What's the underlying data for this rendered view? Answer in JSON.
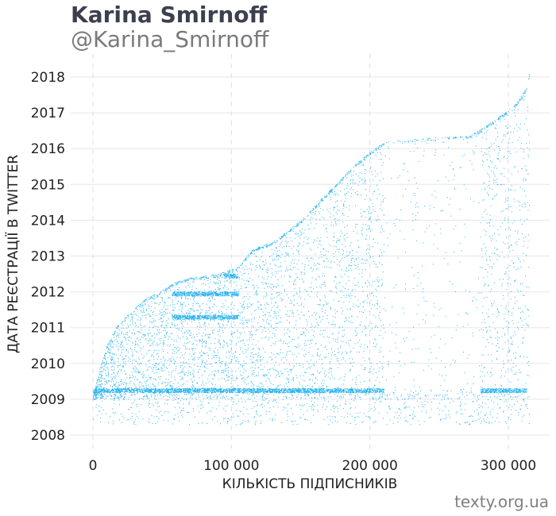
{
  "header": {
    "title": "Karina Smirnoff",
    "subtitle": "@Karina_Smirnoff"
  },
  "source": "texty.org.ua",
  "chart_data": {
    "type": "scatter",
    "xlabel": "КІЛЬКІСТЬ ПІДПИСНИКІВ",
    "ylabel": "ДАТА РЕЄСТРАЦІЇ В TWITTER",
    "xlim": [
      -10000,
      330000
    ],
    "ylim": [
      2007.6,
      2018.2
    ],
    "x_ticks": [
      {
        "value": 0,
        "label": "0"
      },
      {
        "value": 100000,
        "label": "100 000"
      },
      {
        "value": 200000,
        "label": "200 000"
      },
      {
        "value": 300000,
        "label": "300 000"
      }
    ],
    "y_ticks": [
      {
        "value": 2008,
        "label": "2008"
      },
      {
        "value": 2009,
        "label": "2009"
      },
      {
        "value": 2010,
        "label": "2010"
      },
      {
        "value": 2011,
        "label": "2011"
      },
      {
        "value": 2012,
        "label": "2012"
      },
      {
        "value": 2013,
        "label": "2013"
      },
      {
        "value": 2014,
        "label": "2014"
      },
      {
        "value": 2015,
        "label": "2015"
      },
      {
        "value": 2016,
        "label": "2016"
      },
      {
        "value": 2017,
        "label": "2017"
      },
      {
        "value": 2018,
        "label": "2018"
      }
    ],
    "grid": true,
    "point_color": "#1fb0ee",
    "frontier": [
      {
        "x": 0,
        "y": 2009.1
      },
      {
        "x": 5000,
        "y": 2009.9
      },
      {
        "x": 10000,
        "y": 2010.5
      },
      {
        "x": 17000,
        "y": 2011.05
      },
      {
        "x": 22000,
        "y": 2011.25
      },
      {
        "x": 37000,
        "y": 2011.8
      },
      {
        "x": 50000,
        "y": 2012.05
      },
      {
        "x": 58000,
        "y": 2012.25
      },
      {
        "x": 70000,
        "y": 2012.4
      },
      {
        "x": 90000,
        "y": 2012.5
      },
      {
        "x": 105000,
        "y": 2012.7
      },
      {
        "x": 115000,
        "y": 2013.2
      },
      {
        "x": 130000,
        "y": 2013.4
      },
      {
        "x": 150000,
        "y": 2014.0
      },
      {
        "x": 170000,
        "y": 2014.8
      },
      {
        "x": 190000,
        "y": 2015.6
      },
      {
        "x": 210000,
        "y": 2016.2
      },
      {
        "x": 240000,
        "y": 2016.3
      },
      {
        "x": 270000,
        "y": 2016.35
      },
      {
        "x": 280000,
        "y": 2016.55
      },
      {
        "x": 295000,
        "y": 2016.95
      },
      {
        "x": 305000,
        "y": 2017.25
      },
      {
        "x": 313000,
        "y": 2017.7
      },
      {
        "x": 315000,
        "y": 2018.1
      }
    ],
    "dense_bands": [
      {
        "x_range": [
          0,
          210000
        ],
        "y": 2009.25
      },
      {
        "x_range": [
          280000,
          313000
        ],
        "y": 2009.25
      },
      {
        "x_range": [
          57000,
          105000
        ],
        "y": 2011.3
      },
      {
        "x_range": [
          57000,
          105000
        ],
        "y": 2011.95
      },
      {
        "x_range": [
          95000,
          105000
        ],
        "y": 2012.45
      }
    ],
    "sparse_region": {
      "x_range": [
        210000,
        280000
      ],
      "y_range": [
        2009.3,
        2016.3
      ]
    }
  }
}
